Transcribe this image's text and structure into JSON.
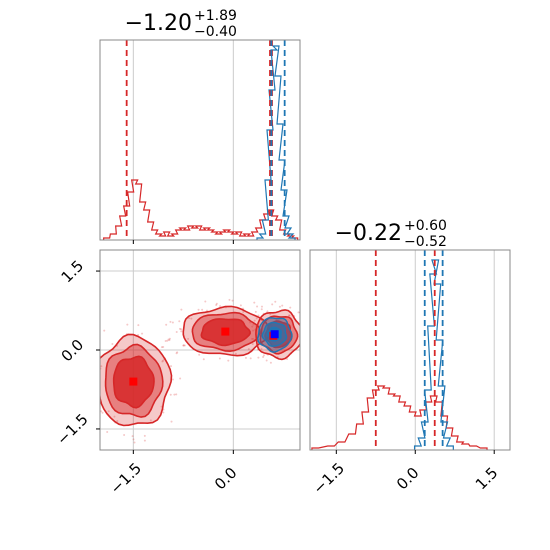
{
  "colors": {
    "red": "#d62728",
    "blue": "#1f77b4",
    "grid": "#cccccc",
    "axis": "#000000"
  },
  "chart_data": {
    "type": "corner",
    "panel_1d_x": {
      "title": {
        "value": "−1.20",
        "plus": "+1.89",
        "minus": "−0.40"
      },
      "xlim": [
        -2.0,
        1.0
      ],
      "vlines_red": [
        -1.6,
        0.55,
        0.58
      ],
      "vlines_blue": [
        0.57,
        0.77
      ],
      "red_hist": [
        [
          -1.9,
          0.01
        ],
        [
          -1.8,
          0.03
        ],
        [
          -1.72,
          0.07
        ],
        [
          -1.66,
          0.12
        ],
        [
          -1.6,
          0.17
        ],
        [
          -1.54,
          0.24
        ],
        [
          -1.48,
          0.3
        ],
        [
          -1.42,
          0.28
        ],
        [
          -1.36,
          0.19
        ],
        [
          -1.3,
          0.15
        ],
        [
          -1.24,
          0.09
        ],
        [
          -1.18,
          0.05
        ],
        [
          -1.12,
          0.03
        ],
        [
          -1.06,
          0.02
        ],
        [
          -1.0,
          0.04
        ],
        [
          -0.94,
          0.02
        ],
        [
          -0.88,
          0.03
        ],
        [
          -0.82,
          0.05
        ],
        [
          -0.76,
          0.06
        ],
        [
          -0.7,
          0.05
        ],
        [
          -0.64,
          0.07
        ],
        [
          -0.58,
          0.06
        ],
        [
          -0.52,
          0.07
        ],
        [
          -0.46,
          0.05
        ],
        [
          -0.4,
          0.06
        ],
        [
          -0.34,
          0.05
        ],
        [
          -0.28,
          0.04
        ],
        [
          -0.22,
          0.03
        ],
        [
          -0.16,
          0.04
        ],
        [
          -0.1,
          0.05
        ],
        [
          -0.04,
          0.04
        ],
        [
          0.02,
          0.03
        ],
        [
          0.08,
          0.04
        ],
        [
          0.14,
          0.02
        ],
        [
          0.2,
          0.03
        ],
        [
          0.26,
          0.02
        ],
        [
          0.32,
          0.04
        ],
        [
          0.38,
          0.06
        ],
        [
          0.44,
          0.1
        ],
        [
          0.5,
          0.13
        ],
        [
          0.56,
          0.15
        ],
        [
          0.62,
          0.12
        ],
        [
          0.68,
          0.1
        ],
        [
          0.74,
          0.05
        ],
        [
          0.8,
          0.03
        ],
        [
          0.86,
          0.02
        ],
        [
          0.92,
          0.01
        ]
      ],
      "blue_hist": [
        [
          0.4,
          0.01
        ],
        [
          0.44,
          0.03
        ],
        [
          0.48,
          0.1
        ],
        [
          0.52,
          0.3
        ],
        [
          0.55,
          0.55
        ],
        [
          0.58,
          0.75
        ],
        [
          0.61,
          0.95
        ],
        [
          0.64,
          0.97
        ],
        [
          0.67,
          0.82
        ],
        [
          0.7,
          0.58
        ],
        [
          0.73,
          0.4
        ],
        [
          0.76,
          0.25
        ],
        [
          0.79,
          0.12
        ],
        [
          0.82,
          0.06
        ],
        [
          0.85,
          0.03
        ],
        [
          0.88,
          0.01
        ]
      ],
      "xticks": [
        -1.5,
        0.0
      ],
      "ylim": [
        0,
        1.0
      ]
    },
    "panel_1d_y": {
      "title": {
        "value": "−0.22",
        "plus": "+0.60",
        "minus": "−0.52"
      },
      "xlim": [
        -2.0,
        1.8
      ],
      "vlines_red": [
        -0.75,
        0.37
      ],
      "vlines_blue": [
        0.18,
        0.52
      ],
      "red_hist": [
        [
          -1.9,
          0.01
        ],
        [
          -1.6,
          0.02
        ],
        [
          -1.4,
          0.04
        ],
        [
          -1.2,
          0.08
        ],
        [
          -1.05,
          0.13
        ],
        [
          -0.95,
          0.19
        ],
        [
          -0.85,
          0.26
        ],
        [
          -0.75,
          0.3
        ],
        [
          -0.65,
          0.32
        ],
        [
          -0.55,
          0.31
        ],
        [
          -0.45,
          0.28
        ],
        [
          -0.35,
          0.27
        ],
        [
          -0.25,
          0.24
        ],
        [
          -0.15,
          0.22
        ],
        [
          -0.05,
          0.19
        ],
        [
          0.05,
          0.17
        ],
        [
          0.15,
          0.2
        ],
        [
          0.25,
          0.24
        ],
        [
          0.35,
          0.27
        ],
        [
          0.45,
          0.24
        ],
        [
          0.55,
          0.17
        ],
        [
          0.65,
          0.11
        ],
        [
          0.75,
          0.07
        ],
        [
          0.85,
          0.04
        ],
        [
          0.95,
          0.03
        ],
        [
          1.1,
          0.02
        ],
        [
          1.3,
          0.01
        ]
      ],
      "blue_hist": [
        [
          0.05,
          0.02
        ],
        [
          0.12,
          0.06
        ],
        [
          0.18,
          0.14
        ],
        [
          0.24,
          0.3
        ],
        [
          0.3,
          0.62
        ],
        [
          0.34,
          0.88
        ],
        [
          0.38,
          0.95
        ],
        [
          0.42,
          0.83
        ],
        [
          0.46,
          0.55
        ],
        [
          0.5,
          0.32
        ],
        [
          0.55,
          0.14
        ],
        [
          0.6,
          0.06
        ],
        [
          0.66,
          0.02
        ]
      ],
      "xticks": [
        -1.5,
        0.0,
        1.5
      ],
      "xtick_labels": [
        "−1.5",
        "0.0",
        "1.5"
      ],
      "ylim": [
        0,
        1.0
      ]
    },
    "panel_2d": {
      "xlim": [
        -2.0,
        1.0
      ],
      "ylim": [
        -1.9,
        1.9
      ],
      "xticks": [
        -1.5,
        0.0
      ],
      "xtick_labels": [
        "−1.5",
        "0.0"
      ],
      "yticks": [
        -1.5,
        0.0,
        1.5
      ],
      "ytick_labels": [
        "−1.5",
        "0.0",
        "1.5"
      ],
      "red_modes": [
        {
          "cx": -1.5,
          "cy": -0.6,
          "rx": 0.55,
          "ry": 0.85
        },
        {
          "cx": -0.12,
          "cy": 0.35,
          "rx": 0.65,
          "ry": 0.45
        },
        {
          "cx": 0.68,
          "cy": 0.3,
          "rx": 0.35,
          "ry": 0.45
        }
      ],
      "blue_mode": {
        "cx": 0.62,
        "cy": 0.3,
        "rx": 0.25,
        "ry": 0.32
      },
      "red_markers": [
        [
          -1.5,
          -0.6
        ],
        [
          -0.12,
          0.35
        ],
        [
          0.6,
          0.27
        ]
      ],
      "blue_marker": [
        0.62,
        0.3
      ]
    }
  }
}
